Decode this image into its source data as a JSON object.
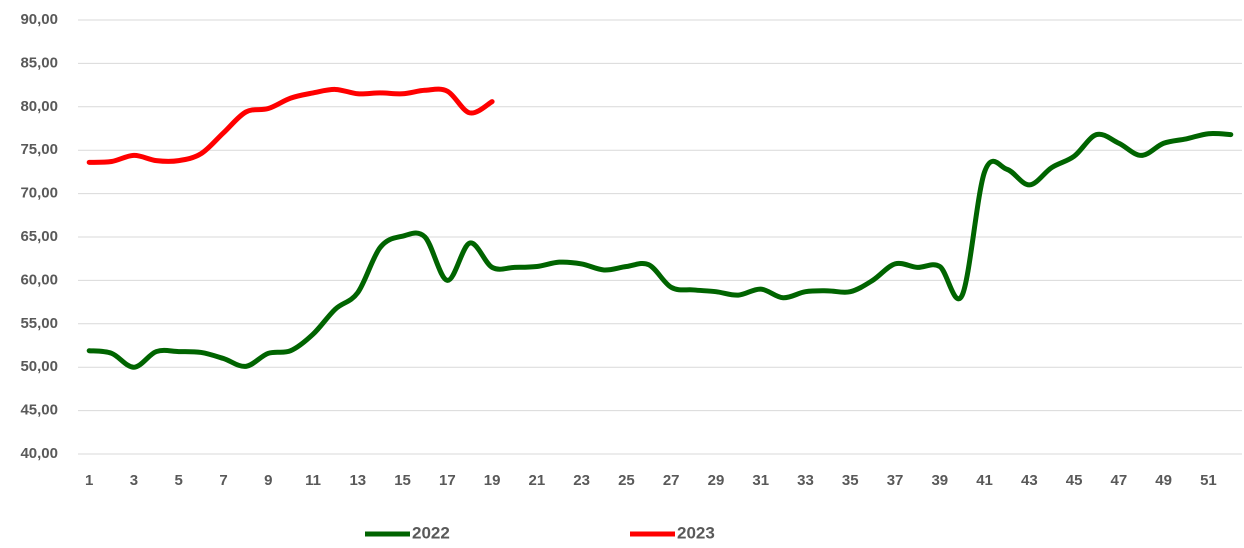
{
  "chart_data": {
    "type": "line",
    "x": [
      1,
      2,
      3,
      4,
      5,
      6,
      7,
      8,
      9,
      10,
      11,
      12,
      13,
      14,
      15,
      16,
      17,
      18,
      19,
      20,
      21,
      22,
      23,
      24,
      25,
      26,
      27,
      28,
      29,
      30,
      31,
      32,
      33,
      34,
      35,
      36,
      37,
      38,
      39,
      40,
      41,
      42,
      43,
      44,
      45,
      46,
      47,
      48,
      49,
      50,
      51,
      52
    ],
    "series": [
      {
        "name": "2022",
        "color": "#006400",
        "values": [
          51.9,
          51.6,
          50.0,
          51.8,
          51.8,
          51.7,
          51.0,
          50.1,
          51.6,
          51.9,
          53.8,
          56.7,
          58.6,
          63.8,
          65.1,
          65.0,
          60.0,
          64.3,
          61.5,
          61.5,
          61.6,
          62.1,
          61.9,
          61.2,
          61.6,
          61.8,
          59.2,
          58.9,
          58.7,
          58.3,
          59.0,
          58.0,
          58.7,
          58.8,
          58.7,
          60.0,
          61.9,
          61.5,
          61.6,
          58.3,
          72.5,
          72.8,
          71.0,
          73.0,
          74.3,
          76.8,
          75.8,
          74.4,
          75.8,
          76.3,
          76.9,
          76.8
        ]
      },
      {
        "name": "2023",
        "color": "#ff0000",
        "values": [
          73.6,
          73.7,
          74.4,
          73.8,
          73.8,
          74.6,
          77.0,
          79.4,
          79.8,
          81.0,
          81.6,
          82.0,
          81.5,
          81.6,
          81.5,
          81.9,
          81.8,
          79.3,
          80.6,
          null,
          null,
          null,
          null,
          null,
          null,
          null,
          null,
          null,
          null,
          null,
          null,
          null,
          null,
          null,
          null,
          null,
          null,
          null,
          null,
          null,
          null,
          null,
          null,
          null,
          null,
          null,
          null,
          null,
          null,
          null,
          null,
          null
        ]
      }
    ],
    "xlim": [
      0.5,
      52.5
    ],
    "xticks": [
      1,
      3,
      5,
      7,
      9,
      11,
      13,
      15,
      17,
      19,
      21,
      23,
      25,
      27,
      29,
      31,
      33,
      35,
      37,
      39,
      41,
      43,
      45,
      47,
      49,
      51
    ],
    "ylim": [
      40,
      90
    ],
    "yticks": [
      {
        "value": 40,
        "label": "40,00"
      },
      {
        "value": 45,
        "label": "45,00"
      },
      {
        "value": 50,
        "label": "50,00"
      },
      {
        "value": 55,
        "label": "55,00"
      },
      {
        "value": 60,
        "label": "60,00"
      },
      {
        "value": 65,
        "label": "65,00"
      },
      {
        "value": 70,
        "label": "70,00"
      },
      {
        "value": 75,
        "label": "75,00"
      },
      {
        "value": 80,
        "label": "80,00"
      },
      {
        "value": 85,
        "label": "85,00"
      },
      {
        "value": 90,
        "label": "90,00"
      }
    ],
    "grid": true,
    "legend": "bottom"
  }
}
